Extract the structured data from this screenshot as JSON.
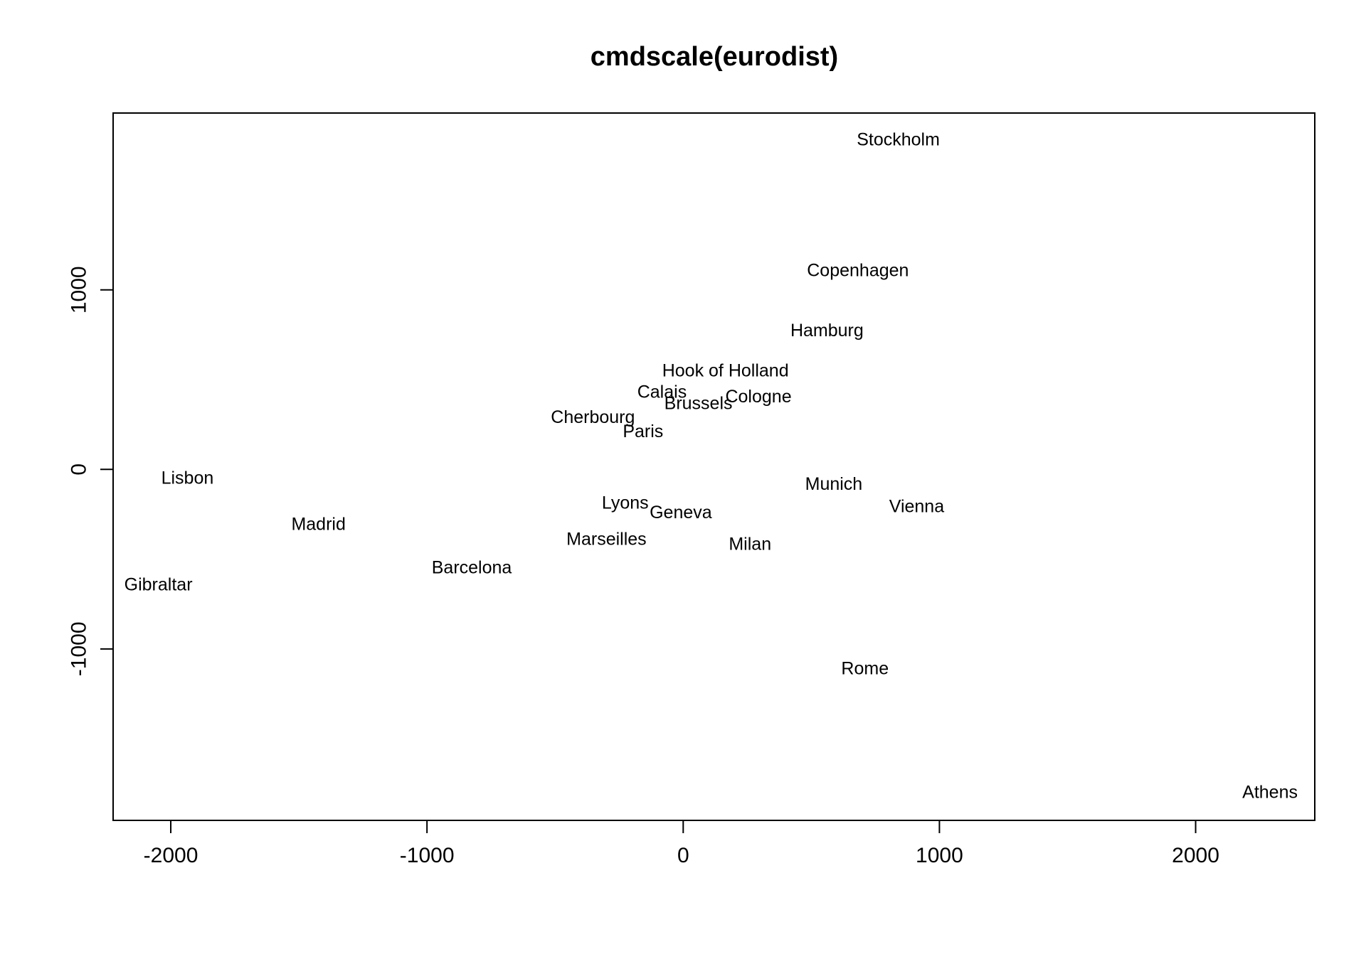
{
  "chart_data": {
    "type": "scatter",
    "title": "cmdscale(eurodist)",
    "xlabel": "",
    "ylabel": "",
    "xlim": [
      -2225,
      2465
    ],
    "ylim": [
      -1955,
      1985
    ],
    "grid": false,
    "x_ticks": [
      -2000,
      -1000,
      0,
      1000,
      2000
    ],
    "y_ticks": [
      -1000,
      0,
      1000
    ],
    "x_tick_labels": [
      "-2000",
      "-1000",
      "0",
      "1000",
      "2000"
    ],
    "y_tick_labels": [
      "-1000",
      "0",
      "1000"
    ],
    "points": [
      {
        "label": "Athens",
        "x": 2290.3,
        "y": -1798.8
      },
      {
        "label": "Barcelona",
        "x": -825.4,
        "y": -546.8
      },
      {
        "label": "Brussels",
        "x": 59.2,
        "y": 367.1
      },
      {
        "label": "Calais",
        "x": -82.8,
        "y": 429.9
      },
      {
        "label": "Cherbourg",
        "x": -352.5,
        "y": 290.9
      },
      {
        "label": "Cologne",
        "x": 293.7,
        "y": 405.3
      },
      {
        "label": "Copenhagen",
        "x": 681.9,
        "y": 1108.6
      },
      {
        "label": "Geneva",
        "x": -9.4,
        "y": -240.4
      },
      {
        "label": "Gibraltar",
        "x": -2048.4,
        "y": -642.5
      },
      {
        "label": "Hamburg",
        "x": 561.1,
        "y": 773.4
      },
      {
        "label": "Hook of Holland",
        "x": 164.9,
        "y": 549.4
      },
      {
        "label": "Lisbon",
        "x": -1935.0,
        "y": -49.1
      },
      {
        "label": "Lyons",
        "x": -226.4,
        "y": -187.1
      },
      {
        "label": "Madrid",
        "x": -1423.4,
        "y": -305.9
      },
      {
        "label": "Marseilles",
        "x": -299.5,
        "y": -388.8
      },
      {
        "label": "Milan",
        "x": 260.9,
        "y": -416.7
      },
      {
        "label": "Munich",
        "x": 587.7,
        "y": -81.2
      },
      {
        "label": "Paris",
        "x": -156.8,
        "y": 211.1
      },
      {
        "label": "Rome",
        "x": 709.4,
        "y": -1109.4
      },
      {
        "label": "Stockholm",
        "x": 839.4,
        "y": 1836.8
      },
      {
        "label": "Vienna",
        "x": 911.2,
        "y": -205.9
      }
    ]
  }
}
